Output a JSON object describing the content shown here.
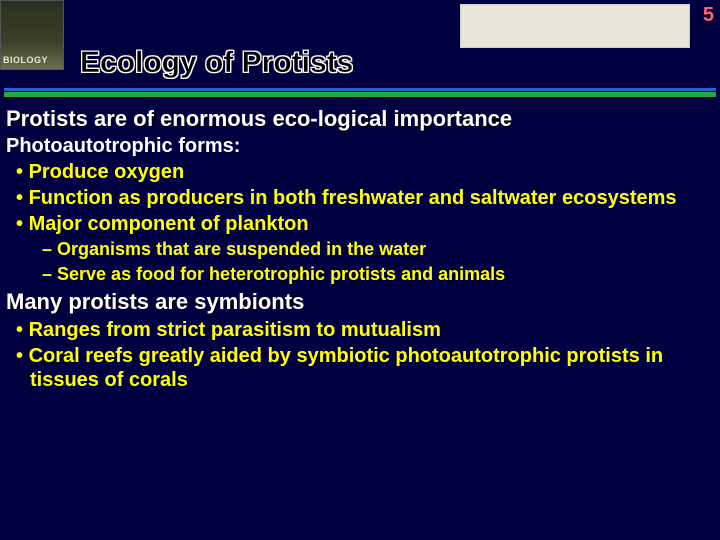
{
  "header": {
    "logo_text": "BIOLOGY",
    "page_number": "5",
    "title": "Ecology of Protists"
  },
  "colors": {
    "background": "#000040",
    "accent_blue": "#2266cc",
    "accent_green": "#22aa44",
    "text_white": "#ffffff",
    "text_yellow": "#ffff00",
    "page_num": "#ff6666"
  },
  "body": {
    "line1": "Protists are of enormous eco-logical importance",
    "line2": "Photoautotrophic forms:",
    "b1": "Produce oxygen",
    "b2": "Function as producers in both freshwater and saltwater ecosystems",
    "b3": "Major component of plankton",
    "b3_s1": "Organisms that are suspended in the  water",
    "b3_s2": "Serve as food for heterotrophic protists and animals",
    "line3": "Many protists are symbionts",
    "b4": "Ranges from strict parasitism to mutualism",
    "b5": "Coral reefs greatly aided by symbiotic photoautotrophic protists in tissues of corals"
  }
}
